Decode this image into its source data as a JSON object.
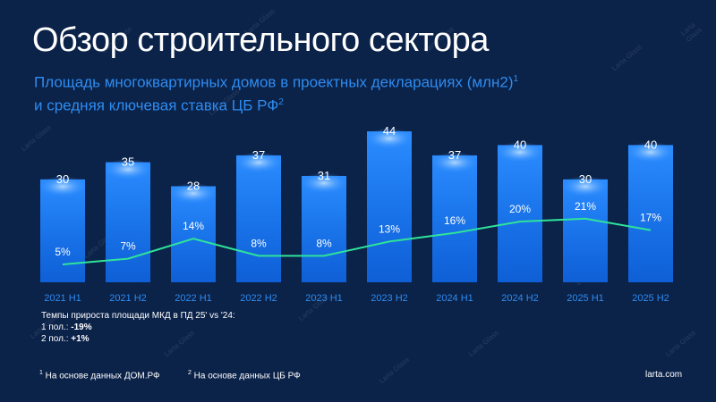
{
  "title": "Обзор строительного сектора",
  "subtitle": {
    "line1": "Площадь многоквартирных домов в проектных декларациях (млн2)",
    "sup1": "1",
    "line2": "и средняя ключевая ставка ЦБ РФ",
    "sup2": "2"
  },
  "watermark": "Larta Glass",
  "chart_data": {
    "type": "bar+line",
    "categories": [
      "2021 H1",
      "2021 H2",
      "2022 H1",
      "2022 H2",
      "2023 H1",
      "2023 H2",
      "2024 H1",
      "2024 H2",
      "2025 H1",
      "2025 H2"
    ],
    "series": [
      {
        "type": "bar",
        "values": [
          30,
          35,
          28,
          37,
          31,
          44,
          37,
          40,
          30,
          40
        ],
        "color": "#1f7ef2"
      },
      {
        "type": "line",
        "values": [
          5,
          7,
          14,
          8,
          8,
          13,
          16,
          20,
          21,
          17
        ],
        "unit": "%",
        "color": "#2fe39a"
      }
    ],
    "grid": false
  },
  "note": {
    "line1": "Темпы прироста площади МКД в ПД 25' vs '24:",
    "h1_label": "1 пол.: ",
    "h1_value": "-19%",
    "h2_label": "2 пол.: ",
    "h2_value": "+1%"
  },
  "footer": {
    "fn1_mark": "1",
    "fn1": " На основе данных ДОМ.РФ",
    "fn2_mark": "2",
    "fn2": " На основе данных ЦБ РФ",
    "site": "larta.com"
  }
}
